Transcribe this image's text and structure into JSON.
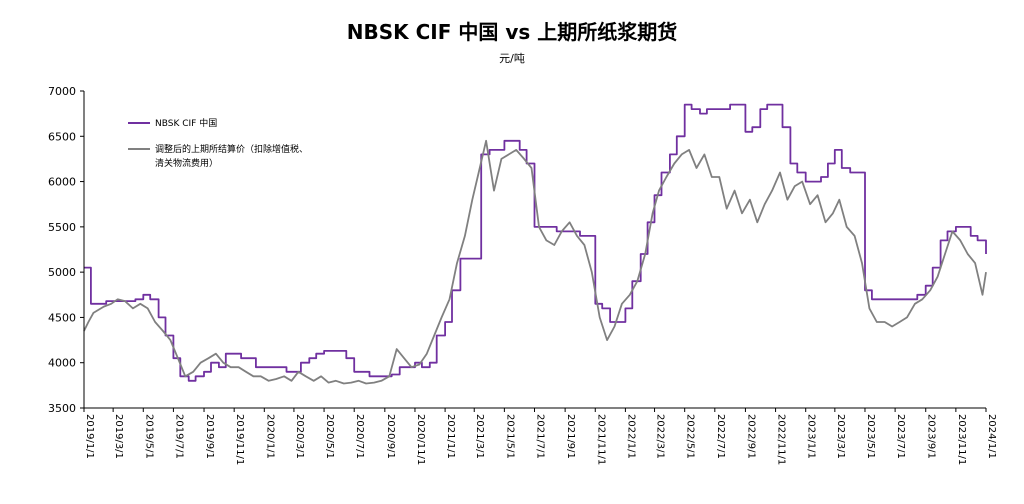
{
  "chart_data": {
    "type": "line",
    "title": "NBSK CIF 中国 vs 上期所纸浆期货",
    "unit": "元/吨",
    "ylim": [
      3500,
      7000
    ],
    "yticks": [
      3500,
      4000,
      4500,
      5000,
      5500,
      6000,
      6500,
      7000
    ],
    "xticks": [
      "2019/1/1",
      "2019/3/1",
      "2019/5/1",
      "2019/7/1",
      "2019/9/1",
      "2019/11/1",
      "2020/1/1",
      "2020/3/1",
      "2020/5/1",
      "2020/7/1",
      "2020/9/1",
      "2020/11/1",
      "2021/1/1",
      "2021/3/1",
      "2021/5/1",
      "2021/7/1",
      "2021/9/1",
      "2021/11/1",
      "2022/1/1",
      "2022/3/1",
      "2022/5/1",
      "2022/7/1",
      "2022/9/1",
      "2022/11/1",
      "2023/1/1",
      "2023/3/1",
      "2023/5/1",
      "2023/7/1",
      "2023/9/1",
      "2023/11/1",
      "2024/1/1"
    ],
    "legend_position": "top-left",
    "series": [
      {
        "name": "NBSK CIF 中国",
        "color": "#7030a0",
        "dates": [
          "2019/1/1",
          "2019/1/8",
          "2019/1/15",
          "2019/2/15",
          "2019/3/15",
          "2019/4/15",
          "2019/5/1",
          "2019/5/15",
          "2019/6/1",
          "2019/6/15",
          "2019/7/1",
          "2019/7/15",
          "2019/8/1",
          "2019/8/15",
          "2019/9/1",
          "2019/9/15",
          "2019/10/1",
          "2019/10/15",
          "2019/11/15",
          "2019/12/15",
          "2020/1/15",
          "2020/2/15",
          "2020/3/1",
          "2020/3/15",
          "2020/4/1",
          "2020/4/15",
          "2020/5/1",
          "2020/6/1",
          "2020/6/15",
          "2020/7/1",
          "2020/8/1",
          "2020/9/1",
          "2020/9/15",
          "2020/10/1",
          "2020/10/15",
          "2020/11/1",
          "2020/11/15",
          "2020/12/1",
          "2020/12/15",
          "2021/1/1",
          "2021/1/15",
          "2021/2/1",
          "2021/2/15",
          "2021/3/1",
          "2021/3/15",
          "2021/4/1",
          "2021/4/15",
          "2021/5/1",
          "2021/5/15",
          "2021/6/1",
          "2021/6/15",
          "2021/7/1",
          "2021/7/15",
          "2021/8/1",
          "2021/8/15",
          "2021/9/1",
          "2021/9/15",
          "2021/10/1",
          "2021/10/15",
          "2021/11/1",
          "2021/11/15",
          "2021/12/1",
          "2021/12/15",
          "2022/1/1",
          "2022/1/15",
          "2022/2/1",
          "2022/2/15",
          "2022/3/1",
          "2022/3/15",
          "2022/4/1",
          "2022/4/15",
          "2022/5/1",
          "2022/5/15",
          "2022/6/1",
          "2022/6/15",
          "2022/7/1",
          "2022/7/15",
          "2022/8/1",
          "2022/8/15",
          "2022/9/1",
          "2022/9/15",
          "2022/10/1",
          "2022/10/15",
          "2022/11/1",
          "2022/11/15",
          "2022/12/1",
          "2022/12/15",
          "2023/1/1",
          "2023/1/15",
          "2023/2/1",
          "2023/2/15",
          "2023/3/1",
          "2023/3/15",
          "2023/4/1",
          "2023/4/15",
          "2023/5/1",
          "2023/5/15",
          "2023/6/1",
          "2023/7/1",
          "2023/8/1",
          "2023/8/15",
          "2023/9/1",
          "2023/9/15",
          "2023/10/1",
          "2023/10/15",
          "2023/11/1",
          "2023/11/15",
          "2023/12/1",
          "2023/12/15",
          "2024/1/1"
        ],
        "values": [
          5050,
          5050,
          4650,
          4680,
          4680,
          4700,
          4750,
          4700,
          4500,
          4300,
          4050,
          3850,
          3800,
          3850,
          3900,
          4000,
          3950,
          4100,
          4050,
          3950,
          3950,
          3900,
          3900,
          4000,
          4050,
          4100,
          4130,
          4130,
          4050,
          3900,
          3850,
          3850,
          3870,
          3950,
          3950,
          4000,
          3950,
          4000,
          4300,
          4450,
          4800,
          5150,
          5150,
          5150,
          6300,
          6350,
          6350,
          6450,
          6450,
          6350,
          6200,
          5500,
          5500,
          5500,
          5450,
          5450,
          5450,
          5400,
          5400,
          4650,
          4600,
          4450,
          4450,
          4600,
          4900,
          5200,
          5550,
          5850,
          6100,
          6300,
          6500,
          6850,
          6800,
          6750,
          6800,
          6800,
          6800,
          6850,
          6850,
          6550,
          6600,
          6800,
          6850,
          6850,
          6600,
          6200,
          6100,
          6000,
          6000,
          6050,
          6200,
          6350,
          6150,
          6100,
          6100,
          4800,
          4700,
          4700,
          4700,
          4700,
          4750,
          4850,
          5050,
          5350,
          5450,
          5500,
          5500,
          5400,
          5350,
          5200
        ]
      },
      {
        "name": "调整后的上期所结算价（扣除增值税、清关物流费用）",
        "color": "#808080",
        "dates": [
          "2019/1/1",
          "2019/1/10",
          "2019/1/20",
          "2019/2/10",
          "2019/2/25",
          "2019/3/10",
          "2019/3/25",
          "2019/4/10",
          "2019/4/25",
          "2019/5/10",
          "2019/5/25",
          "2019/6/10",
          "2019/6/25",
          "2019/7/10",
          "2019/7/25",
          "2019/8/10",
          "2019/8/25",
          "2019/9/10",
          "2019/9/25",
          "2019/10/10",
          "2019/10/25",
          "2019/11/10",
          "2019/11/25",
          "2019/12/10",
          "2019/12/25",
          "2020/1/10",
          "2020/1/25",
          "2020/2/10",
          "2020/2/25",
          "2020/3/10",
          "2020/3/25",
          "2020/4/10",
          "2020/4/25",
          "2020/5/10",
          "2020/5/25",
          "2020/6/10",
          "2020/6/25",
          "2020/7/10",
          "2020/7/25",
          "2020/8/10",
          "2020/8/25",
          "2020/9/10",
          "2020/9/25",
          "2020/10/10",
          "2020/10/25",
          "2020/11/10",
          "2020/11/25",
          "2020/12/10",
          "2020/12/25",
          "2021/1/10",
          "2021/1/25",
          "2021/2/10",
          "2021/2/25",
          "2021/3/10",
          "2021/3/25",
          "2021/4/10",
          "2021/4/25",
          "2021/5/10",
          "2021/5/25",
          "2021/6/10",
          "2021/6/25",
          "2021/7/10",
          "2021/7/25",
          "2021/8/10",
          "2021/8/25",
          "2021/9/10",
          "2021/9/25",
          "2021/10/10",
          "2021/10/25",
          "2021/11/10",
          "2021/11/25",
          "2021/12/10",
          "2021/12/25",
          "2022/1/10",
          "2022/1/25",
          "2022/2/10",
          "2022/2/25",
          "2022/3/10",
          "2022/3/25",
          "2022/4/10",
          "2022/4/25",
          "2022/5/10",
          "2022/5/25",
          "2022/6/10",
          "2022/6/25",
          "2022/7/10",
          "2022/7/25",
          "2022/8/10",
          "2022/8/25",
          "2022/9/10",
          "2022/9/25",
          "2022/10/10",
          "2022/10/25",
          "2022/11/10",
          "2022/11/25",
          "2022/12/10",
          "2022/12/25",
          "2023/1/10",
          "2023/1/25",
          "2023/2/10",
          "2023/2/25",
          "2023/3/10",
          "2023/3/25",
          "2023/4/10",
          "2023/4/25",
          "2023/5/10",
          "2023/5/25",
          "2023/6/10",
          "2023/6/25",
          "2023/7/10",
          "2023/7/25",
          "2023/8/10",
          "2023/8/25",
          "2023/9/10",
          "2023/9/25",
          "2023/10/10",
          "2023/10/25",
          "2023/11/10",
          "2023/11/25",
          "2023/12/10",
          "2023/12/25",
          "2024/1/1"
        ],
        "values": [
          4350,
          4450,
          4550,
          4620,
          4650,
          4700,
          4680,
          4600,
          4650,
          4600,
          4450,
          4350,
          4250,
          4050,
          3850,
          3900,
          4000,
          4050,
          4100,
          4000,
          3950,
          3950,
          3900,
          3850,
          3850,
          3800,
          3820,
          3850,
          3800,
          3900,
          3850,
          3800,
          3850,
          3780,
          3800,
          3770,
          3780,
          3800,
          3770,
          3780,
          3800,
          3850,
          4150,
          4050,
          3950,
          3980,
          4100,
          4300,
          4500,
          4700,
          5100,
          5400,
          5800,
          6100,
          6450,
          5900,
          6250,
          6300,
          6350,
          6250,
          6150,
          5500,
          5350,
          5300,
          5450,
          5550,
          5400,
          5300,
          5000,
          4500,
          4250,
          4400,
          4650,
          4750,
          4900,
          5200,
          5650,
          5900,
          6050,
          6200,
          6300,
          6350,
          6150,
          6300,
          6050,
          6050,
          5700,
          5900,
          5650,
          5800,
          5550,
          5750,
          5900,
          6100,
          5800,
          5950,
          6000,
          5750,
          5850,
          5550,
          5650,
          5800,
          5500,
          5400,
          5100,
          4600,
          4450,
          4450,
          4400,
          4450,
          4500,
          4650,
          4700,
          4800,
          4950,
          5200,
          5450,
          5350,
          5200,
          5100,
          4750,
          5000
        ]
      }
    ]
  }
}
